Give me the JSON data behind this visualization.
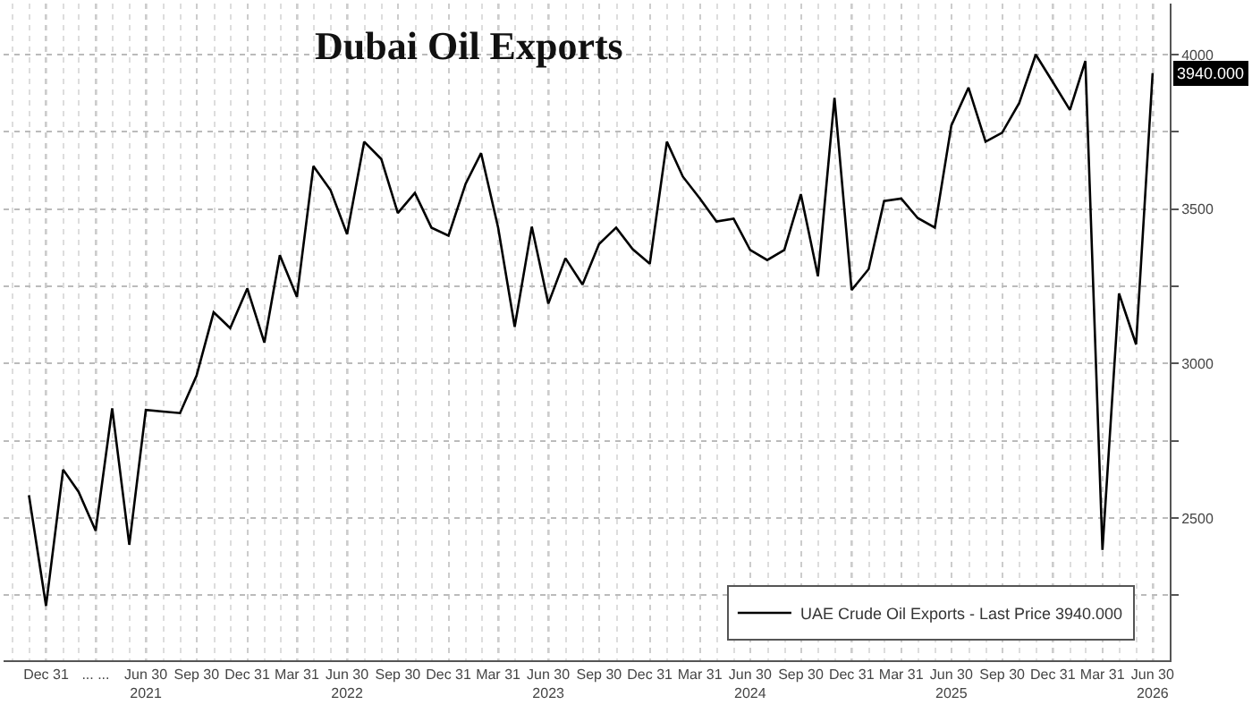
{
  "chart_data": {
    "type": "line",
    "title": "Dubai Oil Exports",
    "x": [
      "2020-11-30",
      "2020-12-31",
      "2021-01-31",
      "2021-02-28",
      "2021-03-31",
      "2021-04-30",
      "2021-05-31",
      "2021-06-30",
      "2021-07-31",
      "2021-08-31",
      "2021-09-30",
      "2021-10-31",
      "2021-11-30",
      "2021-12-31",
      "2022-01-31",
      "2022-02-28",
      "2022-03-31",
      "2022-04-30",
      "2022-05-31",
      "2022-06-30",
      "2022-07-31",
      "2022-08-31",
      "2022-09-30",
      "2022-10-31",
      "2022-11-30",
      "2022-12-31",
      "2023-01-31",
      "2023-02-28",
      "2023-03-31",
      "2023-04-30",
      "2023-05-31",
      "2023-06-30",
      "2023-07-31",
      "2023-08-31",
      "2023-09-30",
      "2023-10-31",
      "2023-11-30",
      "2023-12-31",
      "2024-01-31",
      "2024-02-29",
      "2024-03-31",
      "2024-04-30",
      "2024-05-31",
      "2024-06-30",
      "2024-07-31",
      "2024-08-31",
      "2024-09-30",
      "2024-10-31",
      "2024-11-30",
      "2024-12-31",
      "2025-01-31",
      "2025-02-28",
      "2025-03-31",
      "2025-04-30",
      "2025-05-31",
      "2025-06-30",
      "2025-07-31",
      "2025-08-31",
      "2025-09-30",
      "2025-10-31",
      "2025-11-30",
      "2025-12-31",
      "2026-01-31",
      "2026-02-28",
      "2026-03-31",
      "2026-04-30",
      "2026-05-31",
      "2026-06-30"
    ],
    "series": [
      {
        "name": "UAE Crude Oil Exports - Last Price 3940.000",
        "color": "#000000",
        "values": [
          2574,
          2216,
          2657,
          2585,
          2459,
          2855,
          2414,
          2850,
          2845,
          2840,
          2961,
          3166,
          3115,
          3243,
          3068,
          3351,
          3216,
          3639,
          3561,
          3419,
          3718,
          3662,
          3487,
          3552,
          3440,
          3414,
          3582,
          3681,
          3440,
          3119,
          3443,
          3194,
          3341,
          3256,
          3387,
          3440,
          3370,
          3323,
          3718,
          3605,
          3534,
          3460,
          3469,
          3368,
          3335,
          3368,
          3548,
          3283,
          3860,
          3238,
          3306,
          3526,
          3534,
          3471,
          3440,
          3771,
          3893,
          3718,
          3747,
          3843,
          4000,
          3911,
          3821,
          3979,
          2397,
          3227,
          3062,
          3940
        ]
      }
    ],
    "xlim": [
      "2020-10-15",
      "2026-07-31"
    ],
    "xticks": [
      {
        "value": "2020-12-31",
        "label": "Dec 31"
      },
      {
        "value": "2021-03-31",
        "label": "... ..."
      },
      {
        "value": "2021-06-30",
        "label": "Jun 30\n2021"
      },
      {
        "value": "2021-09-30",
        "label": "Sep 30"
      },
      {
        "value": "2021-12-31",
        "label": "Dec 31"
      },
      {
        "value": "2022-03-31",
        "label": "Mar 31"
      },
      {
        "value": "2022-06-30",
        "label": "Jun 30\n2022"
      },
      {
        "value": "2022-09-30",
        "label": "Sep 30"
      },
      {
        "value": "2022-12-31",
        "label": "Dec 31"
      },
      {
        "value": "2023-03-31",
        "label": "Mar 31"
      },
      {
        "value": "2023-06-30",
        "label": "Jun 30\n2023"
      },
      {
        "value": "2023-09-30",
        "label": "Sep 30"
      },
      {
        "value": "2023-12-31",
        "label": "Dec 31"
      },
      {
        "value": "2024-03-31",
        "label": "Mar 31"
      },
      {
        "value": "2024-06-30",
        "label": "Jun 30\n2024"
      },
      {
        "value": "2024-09-30",
        "label": "Sep 30"
      },
      {
        "value": "2024-12-31",
        "label": "Dec 31"
      },
      {
        "value": "2025-03-31",
        "label": "Mar 31"
      },
      {
        "value": "2025-06-30",
        "label": "Jun 30\n2025"
      },
      {
        "value": "2025-09-30",
        "label": "Sep 30"
      },
      {
        "value": "2025-12-31",
        "label": "Dec 31"
      },
      {
        "value": "2026-03-31",
        "label": "Mar 31"
      },
      {
        "value": "2026-06-30",
        "label": "Jun 30\n2026"
      }
    ],
    "ylim": [
      2040,
      4165
    ],
    "yticks": [
      {
        "value": 2250,
        "label": null
      },
      2500,
      {
        "value": 2750,
        "label": null
      },
      3000,
      {
        "value": 3250,
        "label": null
      },
      3500,
      {
        "value": 3750,
        "label": null
      },
      4000
    ],
    "annotations": [
      "3940.000"
    ],
    "grid": true,
    "legend": "bottom right",
    "line_style": "solid",
    "marker": "none"
  }
}
